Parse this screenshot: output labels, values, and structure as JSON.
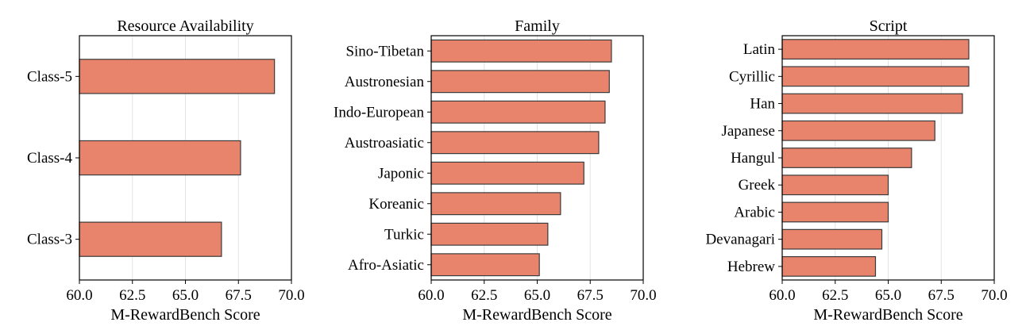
{
  "chart_data": [
    {
      "type": "bar",
      "orientation": "horizontal",
      "title": "Resource Availability",
      "xlabel": "M-RewardBench Score",
      "ylabel": "",
      "xlim": [
        60.0,
        70.0
      ],
      "xticks": [
        "60.0",
        "62.5",
        "65.0",
        "67.5",
        "70.0"
      ],
      "grid": "vertical",
      "bar_color": "#E8836C",
      "categories": [
        "Class-5",
        "Class-4",
        "Class-3"
      ],
      "values": [
        69.2,
        67.6,
        66.7
      ]
    },
    {
      "type": "bar",
      "orientation": "horizontal",
      "title": "Family",
      "xlabel": "M-RewardBench Score",
      "ylabel": "",
      "xlim": [
        60.0,
        70.0
      ],
      "xticks": [
        "60.0",
        "62.5",
        "65.0",
        "67.5",
        "70.0"
      ],
      "grid": "vertical",
      "bar_color": "#E8836C",
      "categories": [
        "Sino-Tibetan",
        "Austronesian",
        "Indo-European",
        "Austroasiatic",
        "Japonic",
        "Koreanic",
        "Turkic",
        "Afro-Asiatic"
      ],
      "values": [
        68.5,
        68.4,
        68.2,
        67.9,
        67.2,
        66.1,
        65.5,
        65.1
      ]
    },
    {
      "type": "bar",
      "orientation": "horizontal",
      "title": "Script",
      "xlabel": "M-RewardBench Score",
      "ylabel": "",
      "xlim": [
        60.0,
        70.0
      ],
      "xticks": [
        "60.0",
        "62.5",
        "65.0",
        "67.5",
        "70.0"
      ],
      "grid": "vertical",
      "bar_color": "#E8836C",
      "categories": [
        "Latin",
        "Cyrillic",
        "Han",
        "Japanese",
        "Hangul",
        "Greek",
        "Arabic",
        "Devanagari",
        "Hebrew"
      ],
      "values": [
        68.8,
        68.8,
        68.5,
        67.2,
        66.1,
        65.0,
        65.0,
        64.7,
        64.4
      ]
    }
  ]
}
